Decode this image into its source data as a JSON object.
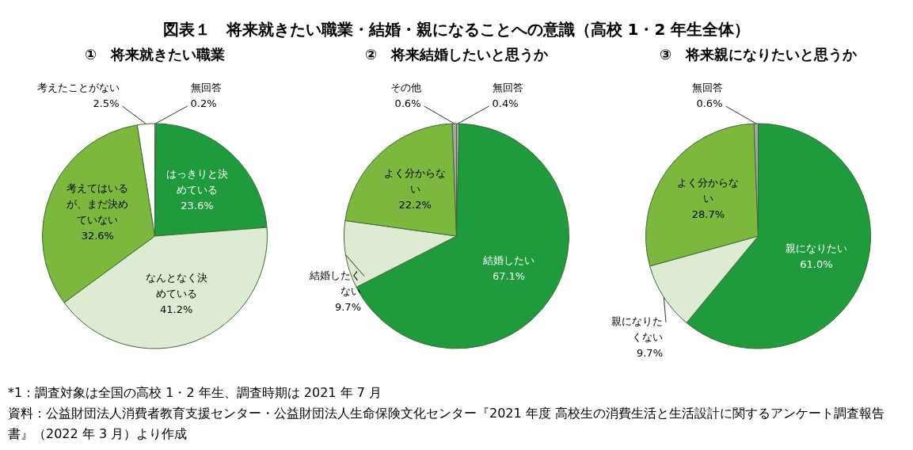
{
  "chart_data": [
    {
      "type": "other",
      "title": "図表１　将来就きたい職業・結婚・親になることへの意識（高校 1・2 年生全体）"
    },
    {
      "type": "pie",
      "title": "①　将来就きたい職業",
      "legend": false,
      "categories": [
        "無回答",
        "はっきりと決めている",
        "なんとなく決めている",
        "考えてはいるが、まだ決めていない",
        "考えたことがない"
      ],
      "values": [
        0.2,
        23.6,
        41.2,
        32.6,
        2.5
      ],
      "value_labels": [
        "0.2%",
        "23.6%",
        "41.2%",
        "32.6%",
        "2.5%"
      ],
      "colors": [
        "#a6a6a6",
        "#1f9a3c",
        "#dcebd2",
        "#7cb83e",
        "#ffffff"
      ]
    },
    {
      "type": "pie",
      "title": "②　将来結婚したいと思うか",
      "legend": false,
      "categories": [
        "無回答",
        "結婚したい",
        "結婚したくない",
        "よく分からない",
        "その他"
      ],
      "values": [
        0.4,
        67.1,
        9.7,
        22.2,
        0.6
      ],
      "value_labels": [
        "0.4%",
        "67.1%",
        "9.7%",
        "22.2%",
        "0.6%"
      ],
      "colors": [
        "#a6a6a6",
        "#1f9a3c",
        "#dcebd2",
        "#7cb83e",
        "#a6a6a6"
      ]
    },
    {
      "type": "pie",
      "title": "③　将来親になりたいと思うか",
      "legend": false,
      "categories": [
        "親になりたい",
        "親になりたくない",
        "よく分からない",
        "無回答"
      ],
      "values": [
        61.0,
        9.7,
        28.7,
        0.6
      ],
      "value_labels": [
        "61.0%",
        "9.7%",
        "28.7%",
        "0.6%"
      ],
      "colors": [
        "#1f9a3c",
        "#dcebd2",
        "#7cb83e",
        "#a6a6a6"
      ]
    },
    {
      "type": "other",
      "annotations": [
        "*1：調査対象は全国の高校 1・2 年生、調査時期は 2021 年 7 月",
        "資料：公益財団法人消費者教育支援センター・公益財団法人生命保険文化センター『2021 年度 高校生の消費生活と生活設計に関するアンケート調査報告書』（2022 年 3 月）より作成"
      ]
    }
  ]
}
